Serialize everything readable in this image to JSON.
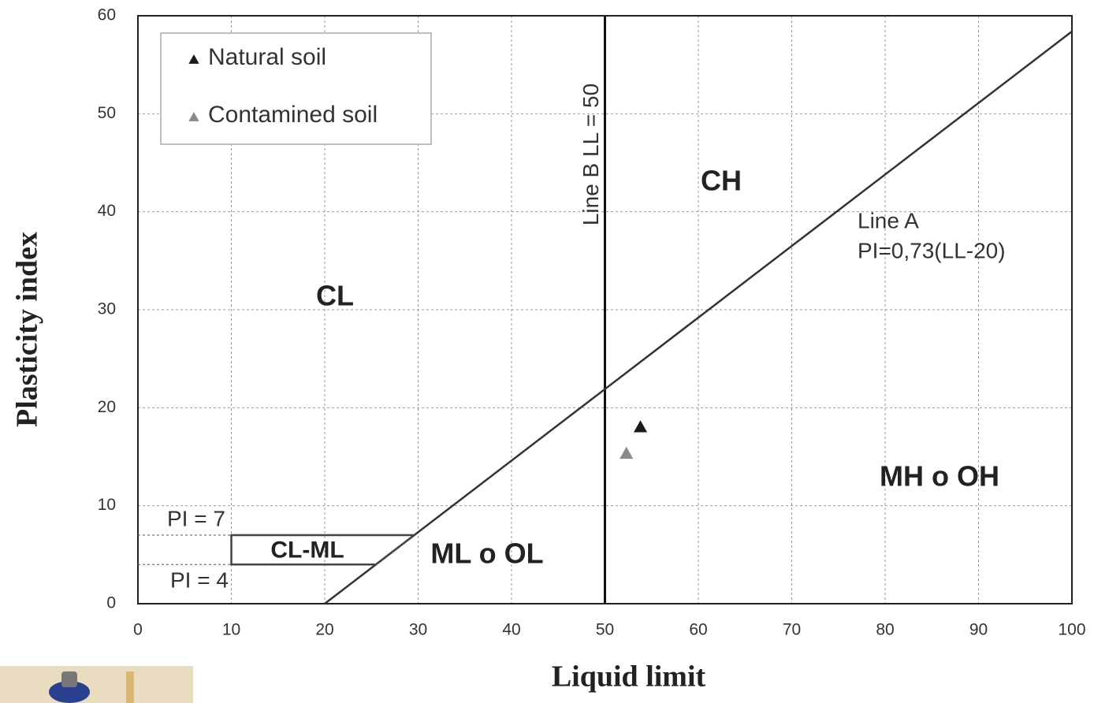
{
  "chart_data": {
    "type": "scatter",
    "x_label": "Liquid limit",
    "y_label": "Plasticity index",
    "xlim": [
      0,
      100
    ],
    "ylim": [
      0,
      60
    ],
    "xticks": [
      0,
      10,
      20,
      30,
      40,
      50,
      60,
      70,
      80,
      90,
      100
    ],
    "yticks": [
      0,
      10,
      20,
      30,
      40,
      50,
      60
    ],
    "grid": true,
    "legend": "upper left",
    "series": [
      {
        "name": "Natural soil",
        "color": "#1a1a1a",
        "x": [
          53.8
        ],
        "values": [
          18
        ]
      },
      {
        "name": "Contamined soil",
        "color": "#8a8a8a",
        "x": [
          52.3
        ],
        "values": [
          15.3
        ]
      }
    ],
    "line_a": {
      "label": [
        "Line A",
        "PI=0,73(LL-20)"
      ],
      "x": [
        20,
        100
      ],
      "y": [
        0,
        58.4
      ]
    },
    "line_b": {
      "label": "Line B LL = 50",
      "x": 50
    },
    "cl_ml": {
      "label": "CL-ML",
      "x_start": 10,
      "pi_low": 4,
      "pi_high": 7,
      "pi_low_label": "PI = 4",
      "pi_high_label": "PI = 7"
    },
    "zones": [
      "CL",
      "CH",
      "ML o OL",
      "MH o OH"
    ]
  }
}
